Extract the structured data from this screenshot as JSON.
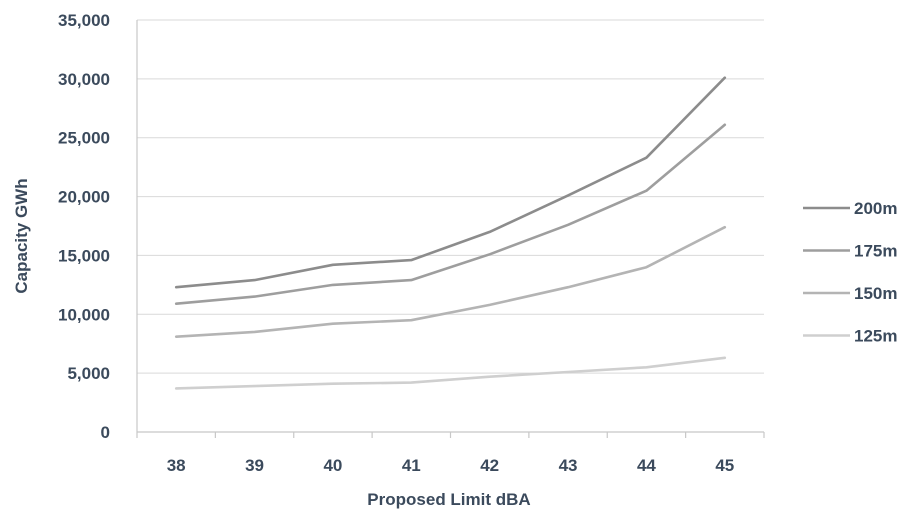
{
  "chart_data": {
    "type": "line",
    "title": "",
    "xlabel": "Proposed Limit dBA",
    "ylabel": "Capacity GWh",
    "categories": [
      "38",
      "39",
      "40",
      "41",
      "42",
      "43",
      "44",
      "45"
    ],
    "ylim": [
      0,
      35000
    ],
    "yticks": [
      "0",
      "5,000",
      "10,000",
      "15,000",
      "20,000",
      "25,000",
      "30,000",
      "35,000"
    ],
    "ytick_values": [
      0,
      5000,
      10000,
      15000,
      20000,
      25000,
      30000,
      35000
    ],
    "grid": true,
    "legend_position": "right",
    "series": [
      {
        "name": "200m",
        "color": "#8c8c8c",
        "values": [
          12300,
          12900,
          14200,
          14600,
          17000,
          20100,
          23300,
          30100
        ]
      },
      {
        "name": "175m",
        "color": "#9e9e9e",
        "values": [
          10900,
          11500,
          12500,
          12900,
          15100,
          17600,
          20500,
          26100
        ]
      },
      {
        "name": "150m",
        "color": "#b4b4b4",
        "values": [
          8100,
          8500,
          9200,
          9500,
          10800,
          12300,
          14000,
          17400
        ]
      },
      {
        "name": "125m",
        "color": "#cfcfcf",
        "values": [
          3700,
          3900,
          4100,
          4200,
          4700,
          5100,
          5500,
          6300
        ]
      }
    ]
  }
}
